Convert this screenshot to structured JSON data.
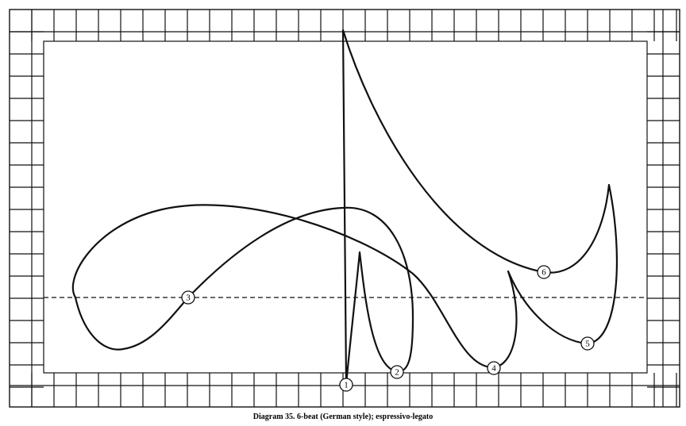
{
  "caption": "Diagram 35.  6-beat (German style); espressivo-legato",
  "beats": [
    "1",
    "2",
    "3",
    "4",
    "5",
    "6"
  ]
}
